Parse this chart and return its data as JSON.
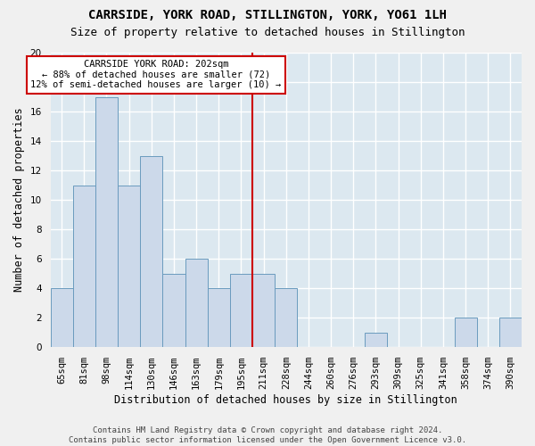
{
  "title": "CARRSIDE, YORK ROAD, STILLINGTON, YORK, YO61 1LH",
  "subtitle": "Size of property relative to detached houses in Stillington",
  "xlabel": "Distribution of detached houses by size in Stillington",
  "ylabel": "Number of detached properties",
  "bar_color": "#ccd9ea",
  "bar_edge_color": "#6a9bbe",
  "background_color": "#dce8f0",
  "grid_color": "#ffffff",
  "fig_bg_color": "#f0f0f0",
  "categories": [
    "65sqm",
    "81sqm",
    "98sqm",
    "114sqm",
    "130sqm",
    "146sqm",
    "163sqm",
    "179sqm",
    "195sqm",
    "211sqm",
    "228sqm",
    "244sqm",
    "260sqm",
    "276sqm",
    "293sqm",
    "309sqm",
    "325sqm",
    "341sqm",
    "358sqm",
    "374sqm",
    "390sqm"
  ],
  "values": [
    4,
    11,
    17,
    11,
    13,
    5,
    6,
    4,
    5,
    5,
    4,
    0,
    0,
    0,
    1,
    0,
    0,
    0,
    2,
    0,
    2
  ],
  "ylim": [
    0,
    20
  ],
  "yticks": [
    0,
    2,
    4,
    6,
    8,
    10,
    12,
    14,
    16,
    18,
    20
  ],
  "vline_index": 8,
  "vline_color": "#cc0000",
  "annotation_text": "CARRSIDE YORK ROAD: 202sqm\n← 88% of detached houses are smaller (72)\n12% of semi-detached houses are larger (10) →",
  "annotation_box_color": "#ffffff",
  "annotation_box_edge": "#cc0000",
  "footer_text": "Contains HM Land Registry data © Crown copyright and database right 2024.\nContains public sector information licensed under the Open Government Licence v3.0.",
  "title_fontsize": 10,
  "subtitle_fontsize": 9,
  "xlabel_fontsize": 8.5,
  "ylabel_fontsize": 8.5,
  "tick_fontsize": 7.5,
  "annotation_fontsize": 7.5,
  "footer_fontsize": 6.5
}
